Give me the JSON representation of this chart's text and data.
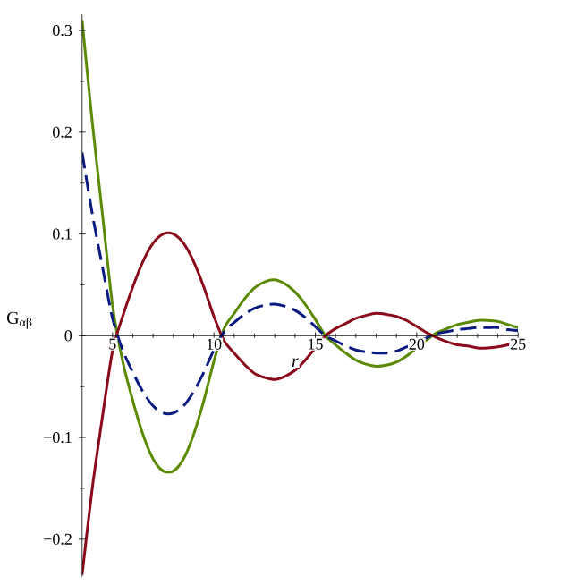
{
  "chart_data": {
    "type": "line",
    "xlabel": "r",
    "ylabel": "G$_{αβ}$",
    "x": [
      3.5,
      4,
      4.5,
      5,
      5.5,
      6,
      6.5,
      7,
      7.5,
      8,
      8.5,
      9,
      9.5,
      10,
      10.5,
      11,
      11.5,
      12,
      12.5,
      13,
      13.5,
      14,
      14.5,
      15,
      15.5,
      16,
      16.5,
      17,
      17.5,
      18,
      18.5,
      19,
      19.5,
      20,
      20.5,
      21,
      21.5,
      22,
      22.5,
      23,
      23.5,
      24,
      24.5,
      25
    ],
    "series": [
      {
        "color": "#5a8a00",
        "line_style": "solid",
        "values": [
          0.31,
          0.21,
          0.12,
          0.03,
          -0.025,
          -0.064,
          -0.097,
          -0.121,
          -0.133,
          -0.133,
          -0.121,
          -0.097,
          -0.064,
          -0.025,
          0.007,
          0.022,
          0.036,
          0.047,
          0.053,
          0.055,
          0.051,
          0.043,
          0.031,
          0.016,
          0,
          -0.009,
          -0.017,
          -0.024,
          -0.028,
          -0.03,
          -0.029,
          -0.026,
          -0.02,
          -0.012,
          -0.004,
          0.003,
          0.007,
          0.011,
          0.013,
          0.015,
          0.015,
          0.014,
          0.011,
          0.008
        ]
      },
      {
        "color": "#8b0a1a",
        "line_style": "solid",
        "values": [
          -0.235,
          -0.15,
          -0.08,
          -0.015,
          0.019,
          0.048,
          0.073,
          0.091,
          0.1,
          0.1,
          0.091,
          0.073,
          0.048,
          0.019,
          -0.005,
          -0.017,
          -0.028,
          -0.037,
          -0.041,
          -0.043,
          -0.04,
          -0.034,
          -0.024,
          -0.012,
          0,
          0.007,
          0.012,
          0.017,
          0.02,
          0.022,
          0.021,
          0.019,
          0.015,
          0.009,
          0.003,
          -0.002,
          -0.006,
          -0.009,
          -0.01,
          -0.012,
          -0.012,
          -0.011,
          -0.009,
          -0.006
        ]
      },
      {
        "color": "#0a1a80",
        "line_style": "dashed",
        "values": [
          0.18,
          0.12,
          0.068,
          0.017,
          -0.014,
          -0.036,
          -0.055,
          -0.069,
          -0.076,
          -0.076,
          -0.069,
          -0.055,
          -0.036,
          -0.014,
          0.004,
          0.013,
          0.021,
          0.027,
          0.03,
          0.031,
          0.029,
          0.025,
          0.018,
          0.009,
          0,
          -0.005,
          -0.01,
          -0.014,
          -0.016,
          -0.017,
          -0.017,
          -0.015,
          -0.011,
          -0.007,
          -0.002,
          0.002,
          0.004,
          0.006,
          0.007,
          0.008,
          0.008,
          0.008,
          0.006,
          0.005
        ]
      }
    ],
    "xlim": [
      3.5,
      25
    ],
    "ylim": [
      -0.237,
      0.316
    ],
    "xticks": [
      5,
      10,
      15,
      20,
      25
    ],
    "yticks": [
      {
        "value": -0.2,
        "label": "−0.2"
      },
      {
        "value": -0.1,
        "label": "−0.1"
      },
      0,
      0.1,
      0.2,
      0.3
    ],
    "grid": false,
    "legend": false,
    "marker": "none"
  }
}
